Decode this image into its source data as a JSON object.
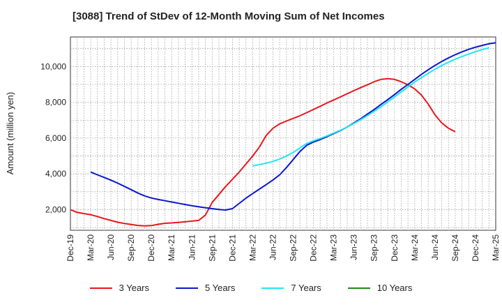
{
  "chart_data": {
    "type": "line",
    "title": "[3088]  Trend of StDev of 12-Month Moving Sum of Net Incomes",
    "ylabel": "Amount (million yen)",
    "xlabel": "",
    "x_tick_labels": [
      "Dec-19",
      "Mar-20",
      "Jun-20",
      "Sep-20",
      "Dec-20",
      "Mar-21",
      "Jun-21",
      "Sep-21",
      "Dec-21",
      "Mar-22",
      "Jun-22",
      "Sep-22",
      "Dec-22",
      "Mar-23",
      "Jun-23",
      "Sep-23",
      "Dec-23",
      "Mar-24",
      "Jun-24",
      "Sep-24",
      "Dec-24",
      "Mar-25"
    ],
    "y_tick_labels": [
      "2,000",
      "4,000",
      "6,000",
      "8,000",
      "10,000"
    ],
    "y_ticks": [
      2000,
      4000,
      6000,
      8000,
      10000
    ],
    "ylim": [
      850,
      11650
    ],
    "grid": true,
    "legend_position": "bottom",
    "series": [
      {
        "name": "3 Years",
        "color": "#e8161b",
        "x_start": "Dec-19",
        "values": [
          2000,
          1850,
          1780,
          1720,
          1620,
          1500,
          1400,
          1300,
          1230,
          1170,
          1120,
          1090,
          1110,
          1180,
          1240,
          1260,
          1290,
          1320,
          1360,
          1400,
          1700,
          2400,
          2850,
          3300,
          3700,
          4100,
          4550,
          5000,
          5500,
          6150,
          6550,
          6800,
          6950,
          7100,
          7250,
          7420,
          7600,
          7780,
          7960,
          8130,
          8300,
          8480,
          8650,
          8820,
          8980,
          9150,
          9280,
          9320,
          9280,
          9150,
          8980,
          8750,
          8400,
          7900,
          7300,
          6850,
          6550,
          6350
        ]
      },
      {
        "name": "5 Years",
        "color": "#0a17cc",
        "x_start": "Mar-20",
        "values": [
          4100,
          3950,
          3800,
          3650,
          3480,
          3300,
          3120,
          2930,
          2770,
          2650,
          2570,
          2500,
          2430,
          2360,
          2290,
          2220,
          2160,
          2110,
          2060,
          2010,
          1980,
          2060,
          2350,
          2640,
          2900,
          3150,
          3400,
          3660,
          3950,
          4350,
          4800,
          5250,
          5600,
          5780,
          5920,
          6080,
          6250,
          6420,
          6620,
          6850,
          7080,
          7340,
          7600,
          7880,
          8150,
          8430,
          8720,
          9000,
          9280,
          9560,
          9820,
          10060,
          10280,
          10480,
          10660,
          10820,
          10960,
          11080,
          11180,
          11270,
          11330
        ]
      },
      {
        "name": "7 Years",
        "color": "#22e6f0",
        "x_start": "Mar-22",
        "values": [
          4450,
          4520,
          4600,
          4700,
          4830,
          5000,
          5200,
          5450,
          5700,
          5850,
          5980,
          6120,
          6280,
          6440,
          6620,
          6820,
          7030,
          7260,
          7500,
          7750,
          8020,
          8300,
          8580,
          8860,
          9130,
          9380,
          9620,
          9850,
          10050,
          10240,
          10410,
          10560,
          10700,
          10830,
          10940,
          11050
        ]
      },
      {
        "name": "10 Years",
        "color": "#1a8a1a",
        "x_start": "Mar-22",
        "values": []
      }
    ]
  }
}
